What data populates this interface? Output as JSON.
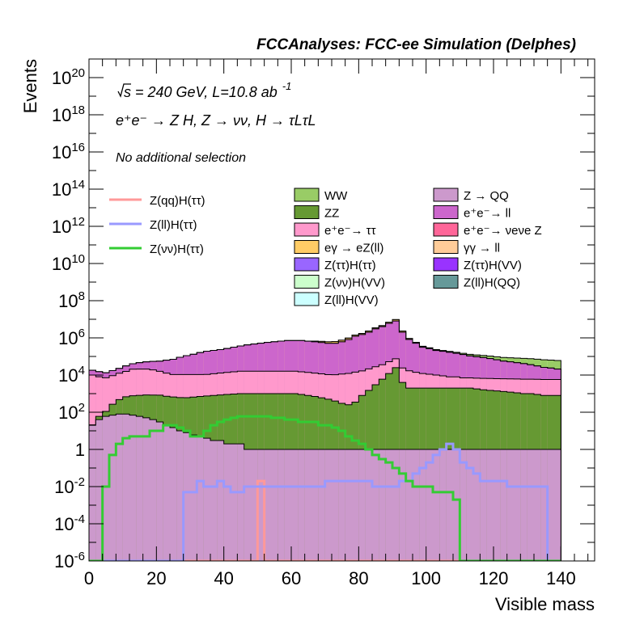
{
  "chart_data": {
    "type": "area",
    "header": "FCCAnalyses: FCC-ee Simulation (Delphes)",
    "annotations": {
      "energy_prefix": "s = 240 GeV, L=10.8 ab",
      "lumi_exponent": "-1",
      "process": "e⁺e⁻ → Z H, Z → νν, H → τLτL",
      "selection": "No additional selection"
    },
    "xlabel": "Visible mass",
    "ylabel": "Events",
    "log_y": true,
    "xlim": [
      0,
      150
    ],
    "ylim": [
      1e-06,
      1e+21
    ],
    "x_ticks": [
      "0",
      "20",
      "40",
      "60",
      "80",
      "100",
      "120",
      "140"
    ],
    "y_ticks": [
      "10-6",
      "10-4",
      "10-2",
      "1",
      "102",
      "104",
      "106",
      "108",
      "1010",
      "1012",
      "1014",
      "1016",
      "1018",
      "1020"
    ],
    "bin_width": 2,
    "x": [
      1,
      3,
      5,
      7,
      9,
      11,
      13,
      15,
      17,
      19,
      21,
      23,
      25,
      27,
      29,
      31,
      33,
      35,
      37,
      39,
      41,
      43,
      45,
      47,
      49,
      51,
      53,
      55,
      57,
      59,
      61,
      63,
      65,
      67,
      69,
      71,
      73,
      75,
      77,
      79,
      81,
      83,
      85,
      87,
      89,
      91,
      93,
      95,
      97,
      99,
      101,
      103,
      105,
      107,
      109,
      111,
      113,
      115,
      117,
      119,
      121,
      123,
      125,
      127,
      129,
      131,
      133,
      135,
      137,
      139
    ],
    "stack_series": [
      {
        "name": "Z → QQ",
        "color": "#cc99cc",
        "values": [
          20,
          40,
          60,
          70,
          80,
          80,
          70,
          60,
          50,
          40,
          30,
          20,
          15,
          10,
          8,
          6,
          5,
          4,
          3,
          3,
          2,
          2,
          2,
          1,
          1,
          1,
          1,
          1,
          1,
          1,
          1,
          1,
          1,
          1,
          1,
          1,
          1,
          1,
          1,
          1,
          1,
          1,
          1,
          1,
          1,
          1,
          1,
          1,
          1,
          1,
          1,
          1,
          1,
          1,
          1,
          1,
          1,
          1,
          1,
          1,
          1,
          1,
          1,
          1,
          1,
          1,
          1,
          1,
          1,
          1
        ]
      },
      {
        "name": "ZZ",
        "color": "#669933",
        "values": [
          1,
          20,
          50,
          200,
          400,
          600,
          700,
          750,
          800,
          800,
          800,
          700,
          650,
          600,
          600,
          650,
          700,
          750,
          800,
          850,
          900,
          950,
          1000,
          1000,
          1000,
          1000,
          1000,
          1000,
          1000,
          1000,
          1000,
          900,
          800,
          700,
          600,
          500,
          400,
          300,
          250,
          350,
          800,
          1500,
          3000,
          6000,
          12000,
          25000,
          4000,
          2000,
          2000,
          2000,
          2000,
          2000,
          2000,
          2000,
          2000,
          2000,
          2000,
          1800,
          1600,
          1500,
          1400,
          1300,
          1200,
          1100,
          1000,
          1000,
          900,
          800,
          800,
          800
        ]
      },
      {
        "name": "e⁺e⁻→ ττ",
        "color": "#ff99cc",
        "values": [
          10000,
          8000,
          7000,
          9000,
          12000,
          15000,
          20000,
          20000,
          20000,
          18000,
          15000,
          12000,
          10000,
          10000,
          10000,
          10000,
          10000,
          10000,
          11000,
          12000,
          13000,
          14000,
          15000,
          15000,
          15000,
          15000,
          15000,
          15000,
          15000,
          15000,
          15000,
          14000,
          13000,
          12000,
          11000,
          10000,
          10000,
          11000,
          12000,
          14000,
          16000,
          20000,
          25000,
          30000,
          40000,
          50000,
          20000,
          15000,
          12000,
          10000,
          9000,
          8000,
          7000,
          6000,
          6000,
          5000,
          5000,
          5000,
          5000,
          5000,
          5000,
          5000,
          5000,
          5000,
          5000,
          5000,
          5000,
          5000,
          5000,
          5000
        ]
      },
      {
        "name": "e⁺e⁻→ ll",
        "color": "#cc66cc",
        "values": [
          8000,
          7000,
          6000,
          8000,
          10000,
          15000,
          20000,
          25000,
          30000,
          35000,
          40000,
          50000,
          60000,
          80000,
          100000,
          120000,
          150000,
          180000,
          200000,
          220000,
          250000,
          300000,
          350000,
          400000,
          450000,
          500000,
          550000,
          600000,
          650000,
          700000,
          700000,
          700000,
          650000,
          600000,
          550000,
          500000,
          500000,
          600000,
          800000,
          1200000,
          1500000,
          2000000,
          3000000,
          4000000,
          6000000,
          8000000,
          2000000,
          800000,
          500000,
          300000,
          250000,
          200000,
          180000,
          160000,
          140000,
          120000,
          100000,
          90000,
          80000,
          70000,
          60000,
          50000,
          45000,
          40000,
          35000,
          30000,
          25000,
          20000,
          18000,
          15000
        ]
      },
      {
        "name": "γγ → ll",
        "color": "#ffcc99",
        "values": [
          1,
          1,
          1,
          1,
          1,
          1,
          1,
          1,
          1,
          1,
          1,
          1,
          1,
          1,
          1,
          1,
          1,
          1,
          1,
          1,
          1,
          1,
          1,
          1,
          1,
          1,
          1,
          1,
          1,
          1,
          1,
          1,
          1,
          1,
          1,
          1,
          1,
          1,
          1,
          1,
          1,
          1,
          1,
          1,
          1,
          1,
          1,
          1,
          1,
          1,
          1,
          1,
          1,
          1,
          1,
          1,
          1,
          1,
          1,
          1,
          1,
          1,
          1,
          1,
          1,
          1,
          1,
          1,
          1,
          1
        ]
      },
      {
        "name": "eγ → eZ(ll)",
        "color": "#ffcc66",
        "values": [
          1,
          1,
          1,
          1,
          1,
          1,
          1,
          1,
          1,
          1,
          1,
          1,
          1,
          1,
          1,
          1,
          1,
          1,
          1,
          1,
          1,
          1,
          1,
          1,
          1,
          1,
          1,
          1,
          1,
          1,
          1,
          1,
          1,
          60000,
          80000,
          100000,
          120000,
          140000,
          160000,
          180000,
          200000,
          300000,
          400000,
          500000,
          800000,
          1500000,
          300000,
          100000,
          50000,
          30000,
          20000,
          10000,
          5000,
          3000,
          2000,
          1000,
          500,
          200,
          100,
          50,
          10,
          5,
          1,
          1,
          1,
          1,
          1,
          1,
          1,
          1
        ]
      },
      {
        "name": "WW",
        "color": "#99cc66",
        "values": [
          1,
          1,
          1,
          1,
          1,
          1,
          1,
          1,
          1,
          1,
          1,
          1,
          1,
          1,
          1,
          1,
          1,
          1,
          1,
          1,
          1,
          1,
          1,
          1,
          1,
          1,
          1,
          1,
          1,
          1,
          1,
          1,
          1,
          1,
          1,
          1,
          1,
          1,
          1,
          1,
          5000,
          8000,
          10000,
          12000,
          15000,
          20000,
          15000,
          12000,
          12000,
          13000,
          14000,
          15000,
          16000,
          17000,
          18000,
          20000,
          22000,
          24000,
          26000,
          28000,
          30000,
          32000,
          34000,
          36000,
          38000,
          40000,
          40000,
          40000,
          40000,
          40000
        ]
      }
    ],
    "overlay_series": [
      {
        "name": "Z(qq)H(ττ)",
        "color": "#ff9999",
        "values": [
          1e-06,
          1e-06,
          1e-06,
          1e-06,
          1e-06,
          1e-06,
          1e-06,
          1e-06,
          1e-06,
          1e-06,
          1e-06,
          1e-06,
          1e-06,
          1e-06,
          1e-06,
          1e-06,
          1e-06,
          1e-06,
          1e-06,
          1e-06,
          1e-06,
          1e-06,
          1e-06,
          1e-06,
          1e-06,
          0.02,
          1e-06,
          1e-06,
          1e-06,
          1e-06,
          1e-06,
          1e-06,
          1e-06,
          1e-06,
          1e-06,
          1e-06,
          1e-06,
          1e-06,
          1e-06,
          1e-06,
          1e-06,
          1e-06,
          1e-06,
          1e-06,
          1e-06,
          1e-06,
          1e-06,
          1e-06,
          1e-06,
          1e-06,
          1e-06,
          1e-06,
          1e-06,
          1e-06,
          1e-06,
          1e-06,
          1e-06,
          1e-06,
          1e-06,
          1e-06,
          1e-06,
          1e-06,
          1e-06,
          1e-06,
          1e-06,
          1e-06,
          1e-06,
          1e-06,
          1e-06,
          1e-06
        ]
      },
      {
        "name": "Z(ll)H(ττ)",
        "color": "#9999ff",
        "values": [
          1e-06,
          1e-06,
          1e-06,
          1e-06,
          1e-06,
          1e-06,
          1e-06,
          1e-06,
          1e-06,
          1e-06,
          1e-06,
          1e-06,
          1e-06,
          1e-06,
          0.005,
          0.005,
          0.02,
          0.01,
          0.01,
          0.02,
          0.01,
          0.005,
          0.005,
          0.01,
          0.01,
          0.01,
          0.01,
          0.01,
          0.01,
          0.01,
          0.01,
          0.01,
          0.01,
          0.01,
          0.01,
          0.02,
          0.02,
          0.02,
          0.02,
          0.02,
          0.02,
          0.02,
          0.01,
          0.01,
          0.01,
          0.01,
          0.02,
          0.02,
          0.05,
          0.1,
          0.2,
          0.5,
          1,
          2,
          1,
          0.2,
          0.1,
          0.05,
          0.02,
          0.02,
          0.02,
          0.02,
          0.01,
          0.01,
          0.01,
          0.01,
          0.01,
          0.01,
          1e-06,
          1e-06
        ]
      },
      {
        "name": "Z(νν)H(ττ)",
        "color": "#33cc33",
        "values": [
          1e-06,
          1e-06,
          0.01,
          0.5,
          2,
          4,
          5,
          5,
          5,
          10,
          10,
          20,
          20,
          15,
          10,
          5,
          5,
          10,
          20,
          30,
          40,
          50,
          60,
          60,
          60,
          60,
          60,
          50,
          50,
          40,
          40,
          30,
          30,
          30,
          20,
          20,
          15,
          10,
          5,
          3,
          2,
          1,
          0.5,
          0.3,
          0.2,
          0.1,
          0.05,
          0.02,
          0.01,
          0.01,
          0.01,
          0.005,
          0.005,
          0.005,
          0.002,
          1e-06,
          1e-06,
          1e-06,
          1e-06,
          1e-06,
          1e-06,
          1e-06,
          1e-06,
          1e-06,
          1e-06,
          1e-06,
          1e-06,
          1e-06,
          1e-06,
          1e-06
        ]
      }
    ],
    "legend_extra": [
      {
        "name": "e⁺e⁻→ νeνe Z",
        "color": "#ff6699"
      },
      {
        "name": "Z(ττ)H(ττ)",
        "color": "#9966ff"
      },
      {
        "name": "Z(ττ)H(VV)",
        "color": "#9933ff"
      },
      {
        "name": "Z(νν)H(VV)",
        "color": "#ccffcc"
      },
      {
        "name": "Z(ll)H(QQ)",
        "color": "#669999"
      },
      {
        "name": "Z(ll)H(VV)",
        "color": "#ccffff"
      }
    ],
    "legend_left": [
      "Z(qq)H(ττ)",
      "Z(ll)H(ττ)",
      "Z(νν)H(ττ)"
    ],
    "legend_col1": [
      "WW",
      "ZZ",
      "e⁺e⁻→ ττ",
      "eγ → eZ(ll)",
      "Z(ττ)H(ττ)",
      "Z(νν)H(VV)",
      "Z(ll)H(VV)"
    ],
    "legend_col2": [
      "Z → QQ",
      "e⁺e⁻→ ll",
      "e⁺e⁻→ νeνe Z",
      "γγ → ll",
      "Z(ττ)H(VV)",
      "Z(ll)H(QQ)"
    ]
  }
}
